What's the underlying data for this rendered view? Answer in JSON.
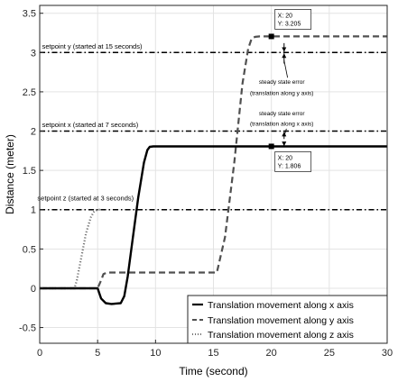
{
  "chart_data": {
    "type": "line",
    "title": "",
    "xlabel": "Time (second)",
    "ylabel": "Distance (meter)",
    "xlim": [
      0,
      30
    ],
    "ylim": [
      -0.7,
      3.6
    ],
    "xticks": [
      0,
      5,
      10,
      15,
      20,
      25,
      30
    ],
    "yticks": [
      -0.5,
      0,
      0.5,
      1,
      1.5,
      2,
      2.5,
      3,
      3.5
    ],
    "xtick_labels": [
      "0",
      "5",
      "10",
      "15",
      "20",
      "25",
      "30"
    ],
    "ytick_labels": [
      "-0.5",
      "0",
      "0.5",
      "1",
      "1.5",
      "2",
      "2.5",
      "3",
      "3.5"
    ],
    "grid": true,
    "legend_position": "bottom-right",
    "series": [
      {
        "name": "Translation movement along x axis",
        "style": "solid",
        "color": "#000000",
        "x": [
          0,
          5.0,
          5.3,
          5.7,
          6.2,
          7.0,
          7.3,
          7.6,
          8.0,
          8.5,
          9.0,
          9.3,
          9.5,
          9.8,
          10.2,
          11,
          30
        ],
        "y": [
          0,
          0,
          -0.13,
          -0.19,
          -0.2,
          -0.19,
          -0.1,
          0.15,
          0.6,
          1.15,
          1.6,
          1.76,
          1.8,
          1.806,
          1.806,
          1.806,
          1.806
        ]
      },
      {
        "name": "Translation movement along y axis",
        "style": "dashed",
        "color": "#505050",
        "x": [
          0,
          5.0,
          5.3,
          5.5,
          5.8,
          15.0,
          15.3,
          16.0,
          16.8,
          17.5,
          18.0,
          18.3,
          18.6,
          19.0,
          30
        ],
        "y": [
          0,
          0,
          0.1,
          0.18,
          0.2,
          0.2,
          0.2,
          0.65,
          1.6,
          2.6,
          3.05,
          3.18,
          3.2,
          3.205,
          3.205
        ]
      },
      {
        "name": "Translation movement along z axis",
        "style": "dotted",
        "color": "#707070",
        "x": [
          0,
          3.0,
          3.2,
          3.6,
          4.0,
          4.4,
          4.7,
          5.0,
          5.2
        ],
        "y": [
          0,
          0,
          0.1,
          0.4,
          0.7,
          0.9,
          0.98,
          1.0,
          1.0
        ]
      },
      {
        "name": "setpoint x",
        "style": "dashdot",
        "color": "#000000",
        "x": [
          0,
          30
        ],
        "y": [
          2,
          2
        ]
      },
      {
        "name": "setpoint y",
        "style": "dashdot",
        "color": "#000000",
        "x": [
          0,
          30
        ],
        "y": [
          3,
          3
        ]
      },
      {
        "name": "setpoint z",
        "style": "dashdot",
        "color": "#000000",
        "x": [
          0,
          30
        ],
        "y": [
          1,
          1
        ]
      }
    ],
    "annotations": [
      {
        "text": "setpoint y (started at 15 seconds)",
        "x": 0.2,
        "y": 3.05
      },
      {
        "text": "setpoint x (started at 7 seconds)",
        "x": 0.2,
        "y": 2.05
      },
      {
        "text": "setpoint z (started at 3 seconds)",
        "x": -0.2,
        "y": 1.12
      },
      {
        "text": "steady state error",
        "x": 20.9,
        "y": 2.6,
        "align": "middle"
      },
      {
        "text": "(translation along y axis)",
        "x": 20.9,
        "y": 2.46,
        "align": "middle"
      },
      {
        "text": "steady state error",
        "x": 20.9,
        "y": 2.2,
        "align": "middle"
      },
      {
        "text": "(translation along x axis)",
        "x": 20.9,
        "y": 2.07,
        "align": "middle"
      }
    ],
    "datatips": [
      {
        "x": 20,
        "y": 3.205,
        "line1": "X: 20",
        "line2": "Y: 3.205"
      },
      {
        "x": 20,
        "y": 1.806,
        "line1": "X: 20",
        "line2": "Y: 1.806"
      }
    ]
  }
}
